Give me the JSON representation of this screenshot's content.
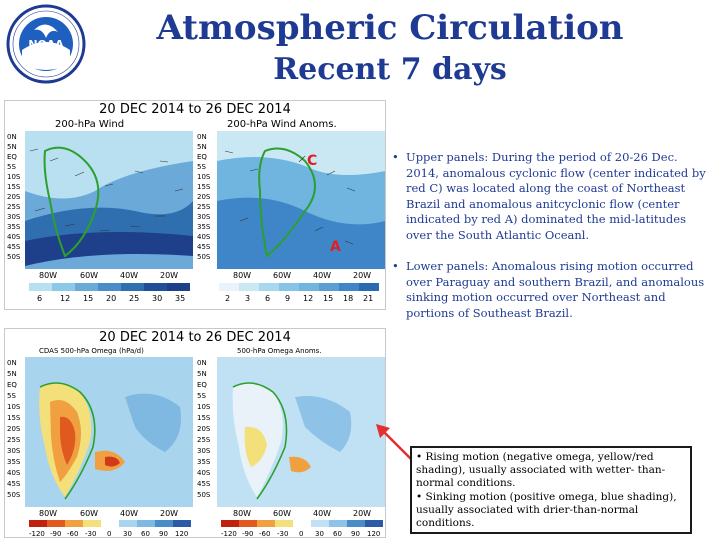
{
  "header": {
    "title": "Atmospheric Circulation",
    "subtitle": "Recent 7 days",
    "logo_text": "NOAA"
  },
  "top_panel": {
    "date": "20 DEC 2014  to  26 DEC 2014",
    "left_title": "200-hPa Wind",
    "right_title": "200-hPa Wind Anoms.",
    "lat_labels": [
      "0N",
      "5N",
      "EQ",
      "5S",
      "10S",
      "15S",
      "20S",
      "25S",
      "30S",
      "35S",
      "40S",
      "45S",
      "50S"
    ],
    "lon_labels": [
      "80W",
      "60W",
      "40W",
      "20W"
    ],
    "colorbar_labels": [
      "6",
      "12",
      "15",
      "20",
      "25",
      "30",
      "35"
    ],
    "anom_colorbar_labels": [
      "2",
      "3",
      "6",
      "9",
      "12",
      "15",
      "18",
      "21"
    ],
    "markers": [
      "C",
      "A"
    ]
  },
  "bottom_panel": {
    "date": "20 DEC 2014  to  26 DEC 2014",
    "left_title": "CDAS 500-hPa Omega (hPa/d)",
    "right_title": "500-hPa Omega Anoms.",
    "lat_labels": [
      "0N",
      "5N",
      "EQ",
      "5S",
      "10S",
      "15S",
      "20S",
      "25S",
      "30S",
      "35S",
      "40S",
      "45S",
      "50S"
    ],
    "lon_labels": [
      "80W",
      "60W",
      "40W",
      "20W"
    ],
    "colorbar_labels": [
      "-120",
      "-90",
      "-60",
      "-30",
      "0",
      "30",
      "60",
      "90",
      "120"
    ]
  },
  "bullets": [
    "Upper panels: During the period of 20-26 Dec. 2014, anomalous cyclonic flow (center indicated by red C) was located along the coast of Northeast Brazil and anomalous anitcyclonic flow (center indicated by red A) dominated the mid-latitudes over the South Atlantic Oceanl.",
    "Lower panels: Anomalous rising motion occurred over Paraguay and southern Brazil, and anomalous sinking motion occurred over Northeast and portions of Southeast Brazil."
  ],
  "note_box": {
    "line1": "• Rising motion (negative omega, yellow/red shading), usually associated with wetter- than-normal conditions.",
    "line2": "• Sinking motion (positive omega, blue shading), usually associated with drier-than-normal conditions."
  },
  "colors": {
    "title": "#1f3a93",
    "bullet_text": "#1f3a93",
    "arrow": "#e03030"
  }
}
